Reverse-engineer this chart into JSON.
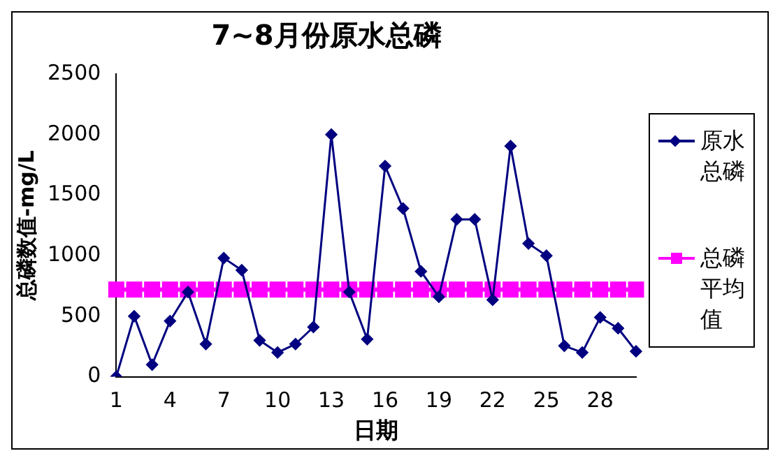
{
  "chart_data": {
    "type": "line",
    "title": "7~8月份原水总磷",
    "xlabel": "日期",
    "ylabel": "总磷数值-mg/L",
    "categories": [
      "1",
      null,
      null,
      "4",
      null,
      null,
      "7",
      null,
      null,
      "10",
      null,
      null,
      "13",
      null,
      null,
      "16",
      null,
      null,
      "19",
      null,
      null,
      "22",
      null,
      null,
      "25",
      null,
      null,
      "28",
      null,
      null
    ],
    "series": [
      {
        "name": "原水总磷",
        "color": "#000080",
        "marker": "diamond",
        "values": [
          0,
          500,
          100,
          460,
          700,
          270,
          980,
          880,
          300,
          200,
          270,
          410,
          2000,
          700,
          310,
          1740,
          1390,
          870,
          660,
          1300,
          1300,
          635,
          1905,
          1100,
          1000,
          255,
          200,
          490,
          400,
          210
        ]
      },
      {
        "name": "总磷平均值",
        "color": "#ff00ff",
        "marker": "square",
        "values": [
          720,
          720,
          720,
          720,
          720,
          720,
          720,
          720,
          720,
          720,
          720,
          720,
          720,
          720,
          720,
          720,
          720,
          720,
          720,
          720,
          720,
          720,
          720,
          720,
          720,
          720,
          720,
          720,
          720,
          720
        ]
      }
    ],
    "ylim": [
      0,
      2500
    ],
    "yticks": [
      0,
      500,
      1000,
      1500,
      2000,
      2500
    ],
    "grid": false,
    "legend": "right",
    "line_style": "solid"
  }
}
